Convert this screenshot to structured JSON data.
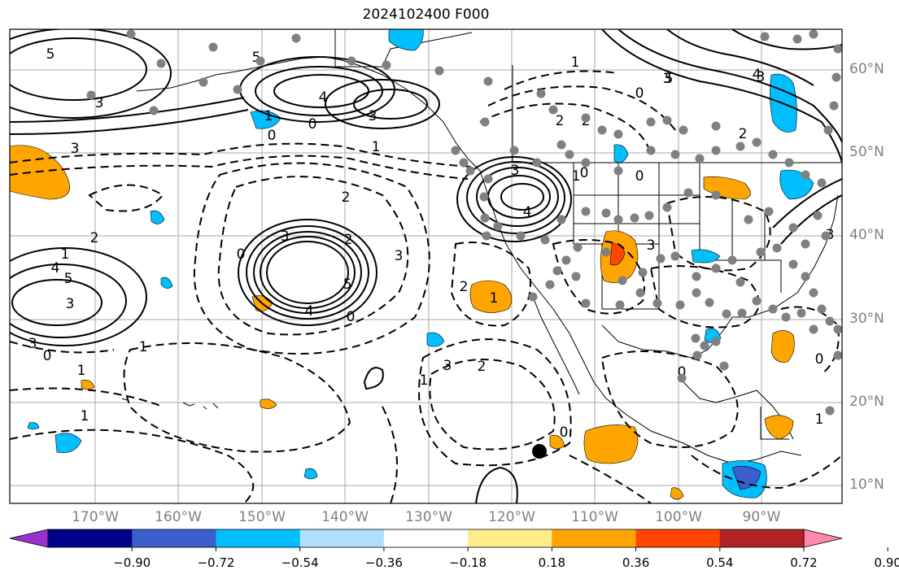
{
  "title": "2024102400 F000",
  "lat_labels": [
    "60°N",
    "50°N",
    "40°N",
    "30°N",
    "20°N",
    "10°N"
  ],
  "lon_labels": [
    "170°W",
    "160°W",
    "150°W",
    "140°W",
    "130°W",
    "120°W",
    "110°W",
    "100°W",
    "90°W"
  ],
  "colorbar": {
    "colors": [
      "#9932cc",
      "#00008b",
      "#3a5fcd",
      "#00bfff",
      "#afe1ff",
      "#ffffff",
      "#ffec8b",
      "#ffa500",
      "#ff4500",
      "#b22222",
      "#ff88aa"
    ],
    "tick_labels": [
      "−0.90",
      "−0.72",
      "−0.54",
      "−0.36",
      "−0.18",
      "0.18",
      "0.36",
      "0.54",
      "0.72",
      "0.90"
    ]
  },
  "contour_labels": [
    "5",
    "3",
    "4",
    "3",
    "5",
    "1",
    "0",
    "3",
    "3",
    "4",
    "2",
    "1",
    "2",
    "5",
    "3",
    "4",
    "5",
    "3",
    "4",
    "0",
    "3",
    "2",
    "2",
    "1",
    "0",
    "2",
    "1",
    "0",
    "1",
    "0",
    "1",
    "1",
    "3",
    "3",
    "3",
    "5",
    "2",
    "1",
    "0",
    "0",
    "1",
    "0",
    "2",
    "3",
    "4",
    "3",
    "3",
    "0",
    "0",
    "2",
    "1",
    "0",
    "1"
  ]
}
